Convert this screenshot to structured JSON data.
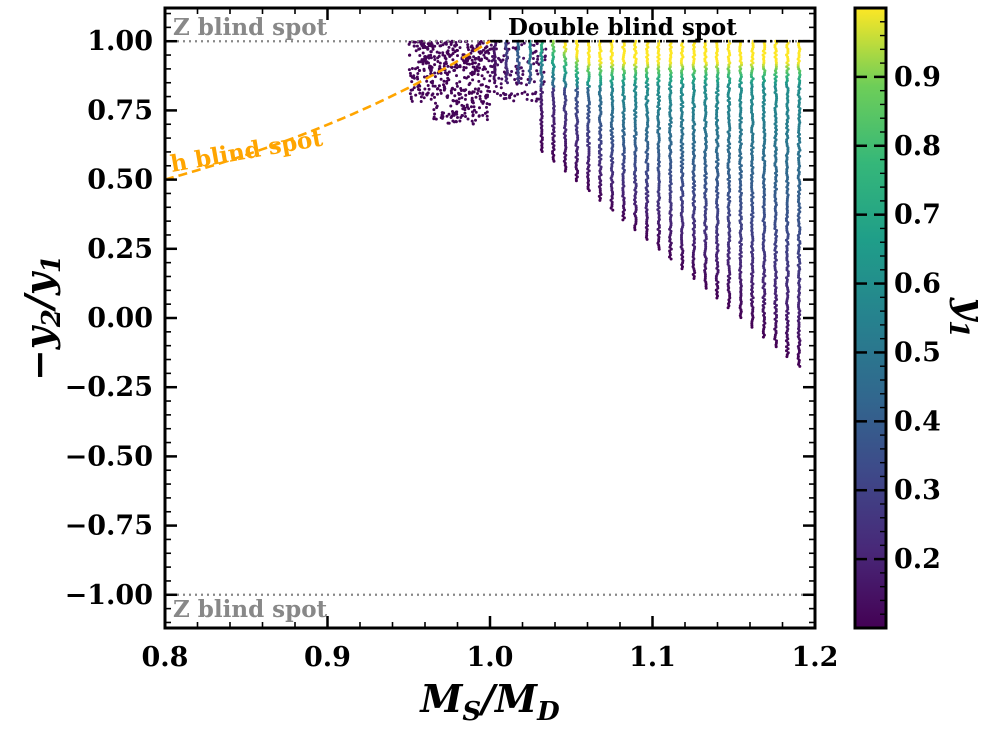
{
  "chart_data": {
    "type": "scatter",
    "xlabel": "M_S/M_D",
    "ylabel": "−y_2/y_1",
    "xlim": [
      0.8,
      1.2
    ],
    "ylim": [
      -1.12,
      1.12
    ],
    "x_ticks": [
      "0.8",
      "0.9",
      "1.0",
      "1.1",
      "1.2"
    ],
    "y_ticks": [
      "−1.00",
      "−0.75",
      "−0.50",
      "−0.25",
      "0.00",
      "0.25",
      "0.50",
      "0.75",
      "1.00"
    ],
    "x_tick_values": [
      0.8,
      0.9,
      1.0,
      1.1,
      1.2
    ],
    "y_tick_values": [
      -1.0,
      -0.75,
      -0.5,
      -0.25,
      0.0,
      0.25,
      0.5,
      0.75,
      1.0
    ],
    "grid": false,
    "colorbar": {
      "label": "y_1",
      "colormap": "viridis",
      "range": [
        0.1,
        1.0
      ],
      "ticks": [
        "0.2",
        "0.3",
        "0.4",
        "0.5",
        "0.6",
        "0.7",
        "0.8",
        "0.9"
      ],
      "tick_values": [
        0.2,
        0.3,
        0.4,
        0.5,
        0.6,
        0.7,
        0.8,
        0.9
      ]
    },
    "reference_lines": [
      {
        "label": "Z blind spot",
        "y": 1.0,
        "style": "dotted",
        "color": "#888888"
      },
      {
        "label": "Z blind spot",
        "y": -1.0,
        "style": "dotted",
        "color": "#888888"
      },
      {
        "label": "Double blind spot",
        "y": 1.0,
        "x_range": [
          1.0,
          1.2
        ],
        "style": "dash-dot",
        "color": "#000000"
      }
    ],
    "curve": {
      "label": "h blind spot",
      "color": "#ffa500",
      "style": "dashed",
      "relation": "y = x^2 / (2 - x^2) ... approx -y2/y1 = 0.5 at 0.8 rising to 1.0 at 1.0",
      "points": [
        [
          0.8,
          0.5
        ],
        [
          0.85,
          0.57
        ],
        [
          0.9,
          0.66
        ],
        [
          0.95,
          0.79
        ],
        [
          1.0,
          1.0
        ]
      ]
    },
    "scatter_regions": [
      {
        "description": "cluster below M_S/M_D = 1",
        "x_range": [
          0.95,
          1.0
        ],
        "y_range": [
          0.7,
          1.0
        ],
        "color_value": 0.1
      },
      {
        "description": "cluster above M_S/M_D = 1",
        "x_columns_start": 1.0,
        "x_columns_end": 1.195,
        "x_step": 0.0072,
        "y_top": 1.0,
        "y_bottom_at_1.03": 0.5,
        "y_bottom_at_1.195": -0.19
      }
    ],
    "annotations": {
      "z_top": "Z blind spot",
      "z_bottom": "Z blind spot",
      "double": "Double blind spot",
      "h": "h blind spot"
    }
  }
}
